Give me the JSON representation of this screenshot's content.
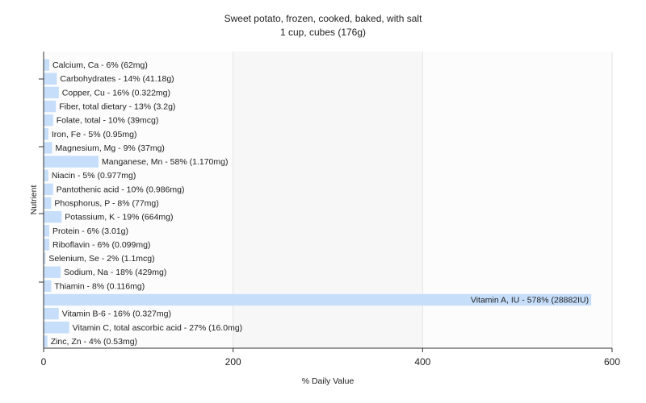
{
  "chart_data": {
    "type": "bar",
    "orientation": "horizontal",
    "title": "Sweet potato, frozen, cooked, baked, with salt",
    "subtitle": "1 cup, cubes (176g)",
    "xlabel": "% Daily Value",
    "ylabel": "Nutrient",
    "xlim": [
      0,
      600
    ],
    "xticks": [
      "0",
      "200",
      "400",
      "600"
    ],
    "grid": true,
    "bar_color": "#c6defa",
    "categories": [
      "Calcium, Ca - 6% (62mg)",
      "Carbohydrates - 14% (41.18g)",
      "Copper, Cu - 16% (0.322mg)",
      "Fiber, total dietary - 13% (3.2g)",
      "Folate, total - 10% (39mcg)",
      "Iron, Fe - 5% (0.95mg)",
      "Magnesium, Mg - 9% (37mg)",
      "Manganese, Mn - 58% (1.170mg)",
      "Niacin - 5% (0.977mg)",
      "Pantothenic acid - 10% (0.986mg)",
      "Phosphorus, P - 8% (77mg)",
      "Potassium, K - 19% (664mg)",
      "Protein - 6% (3.01g)",
      "Riboflavin - 6% (0.099mg)",
      "Selenium, Se - 2% (1.1mcg)",
      "Sodium, Na - 18% (429mg)",
      "Thiamin - 8% (0.116mg)",
      "Vitamin A, IU - 578% (28882IU)",
      "Vitamin B-6 - 16% (0.327mg)",
      "Vitamin C, total ascorbic acid - 27% (16.0mg)",
      "Zinc, Zn - 4% (0.53mg)"
    ],
    "values": [
      6,
      14,
      16,
      13,
      10,
      5,
      9,
      58,
      5,
      10,
      8,
      19,
      6,
      6,
      2,
      18,
      8,
      578,
      16,
      27,
      4
    ]
  }
}
